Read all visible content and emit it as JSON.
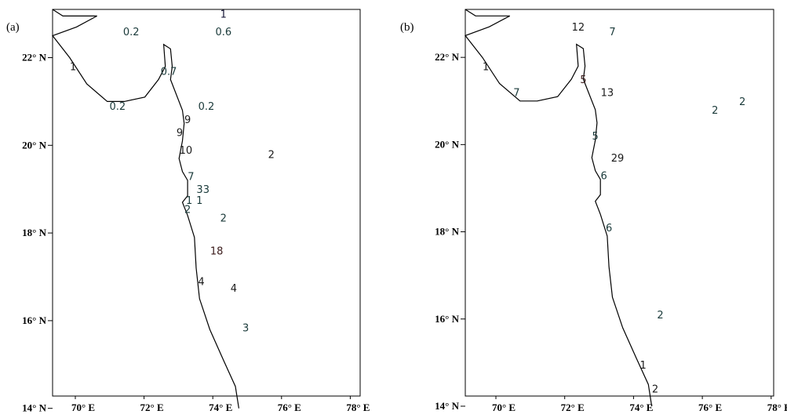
{
  "panels": [
    {
      "id": "a",
      "label": "(a)",
      "lat_ticks": [
        "14° N",
        "16° N",
        "18° N",
        "20° N",
        "22° N"
      ],
      "lon_ticks": [
        "70° E",
        "72° E",
        "74° E",
        "76° E",
        "78° E"
      ],
      "values": [
        {
          "text": "1",
          "lon": 74.0,
          "lat": 23.0,
          "color": "#1a1a3a"
        },
        {
          "text": "0.6",
          "lon": 74.0,
          "lat": 22.6,
          "color": "#1a3a3a"
        },
        {
          "text": "0.2",
          "lon": 71.3,
          "lat": 22.6,
          "color": "#1a3a3a"
        },
        {
          "text": "1",
          "lon": 69.6,
          "lat": 21.8,
          "color": "#1a1a1a"
        },
        {
          "text": "0.7",
          "lon": 72.4,
          "lat": 21.7,
          "color": "#1a3a3a"
        },
        {
          "text": "0.2",
          "lon": 70.9,
          "lat": 20.9,
          "color": "#1a3a3a"
        },
        {
          "text": "0.2",
          "lon": 73.5,
          "lat": 20.9,
          "color": "#1a3a3a"
        },
        {
          "text": "9",
          "lon": 72.95,
          "lat": 20.6,
          "color": "#1a1a1a"
        },
        {
          "text": "9",
          "lon": 72.72,
          "lat": 20.3,
          "color": "#1a1a1a"
        },
        {
          "text": "10",
          "lon": 72.9,
          "lat": 19.9,
          "color": "#1a1a1a"
        },
        {
          "text": "2",
          "lon": 75.4,
          "lat": 19.8,
          "color": "#1a1a1a"
        },
        {
          "text": "7",
          "lon": 73.05,
          "lat": 19.3,
          "color": "#1a3a3a"
        },
        {
          "text": "33",
          "lon": 73.4,
          "lat": 19.0,
          "color": "#1a3a3a"
        },
        {
          "text": "1",
          "lon": 73.0,
          "lat": 18.75,
          "color": "#1a3a3a"
        },
        {
          "text": "1",
          "lon": 73.3,
          "lat": 18.75,
          "color": "#1a3a3a"
        },
        {
          "text": "2",
          "lon": 72.95,
          "lat": 18.55,
          "color": "#1a3a3a"
        },
        {
          "text": "2",
          "lon": 74.0,
          "lat": 18.35,
          "color": "#1a3a3a"
        },
        {
          "text": "18",
          "lon": 73.8,
          "lat": 17.6,
          "color": "#3a1a1a"
        },
        {
          "text": "4",
          "lon": 73.35,
          "lat": 16.9,
          "color": "#1a1a1a"
        },
        {
          "text": "4",
          "lon": 74.3,
          "lat": 16.75,
          "color": "#1a1a1a"
        },
        {
          "text": "3",
          "lon": 74.65,
          "lat": 15.85,
          "color": "#1a3a3a"
        }
      ]
    },
    {
      "id": "b",
      "label": "(b)",
      "lat_ticks": [
        "14° N",
        "16° N",
        "18° N",
        "20° N",
        "22° N"
      ],
      "lon_ticks": [
        "70° E",
        "72° E",
        "74° E",
        "76° E",
        "78° E"
      ],
      "values": [
        {
          "text": "12",
          "lon": 72.3,
          "lat": 22.7,
          "color": "#1a1a1a"
        },
        {
          "text": "7",
          "lon": 73.3,
          "lat": 22.6,
          "color": "#1a3a3a"
        },
        {
          "text": "1",
          "lon": 69.6,
          "lat": 21.8,
          "color": "#1a1a1a"
        },
        {
          "text": "5",
          "lon": 72.45,
          "lat": 21.5,
          "color": "#3a1a1a"
        },
        {
          "text": "7",
          "lon": 70.5,
          "lat": 21.2,
          "color": "#1a3a3a"
        },
        {
          "text": "13",
          "lon": 73.15,
          "lat": 21.2,
          "color": "#1a1a1a"
        },
        {
          "text": "2",
          "lon": 76.3,
          "lat": 20.8,
          "color": "#1a3a3a"
        },
        {
          "text": "2",
          "lon": 77.1,
          "lat": 21.0,
          "color": "#1a3a3a"
        },
        {
          "text": "5",
          "lon": 72.8,
          "lat": 20.2,
          "color": "#1a3a3a"
        },
        {
          "text": "29",
          "lon": 73.45,
          "lat": 19.7,
          "color": "#1a1a1a"
        },
        {
          "text": "6",
          "lon": 73.05,
          "lat": 19.3,
          "color": "#1a3a3a"
        },
        {
          "text": "6",
          "lon": 73.2,
          "lat": 18.1,
          "color": "#1a3a3a"
        },
        {
          "text": "2",
          "lon": 74.7,
          "lat": 16.1,
          "color": "#1a3a3a"
        },
        {
          "text": "1",
          "lon": 74.2,
          "lat": 14.95,
          "color": "#1a1a1a"
        },
        {
          "text": "2",
          "lon": 74.55,
          "lat": 14.4,
          "color": "#1a1a1a"
        }
      ]
    }
  ]
}
